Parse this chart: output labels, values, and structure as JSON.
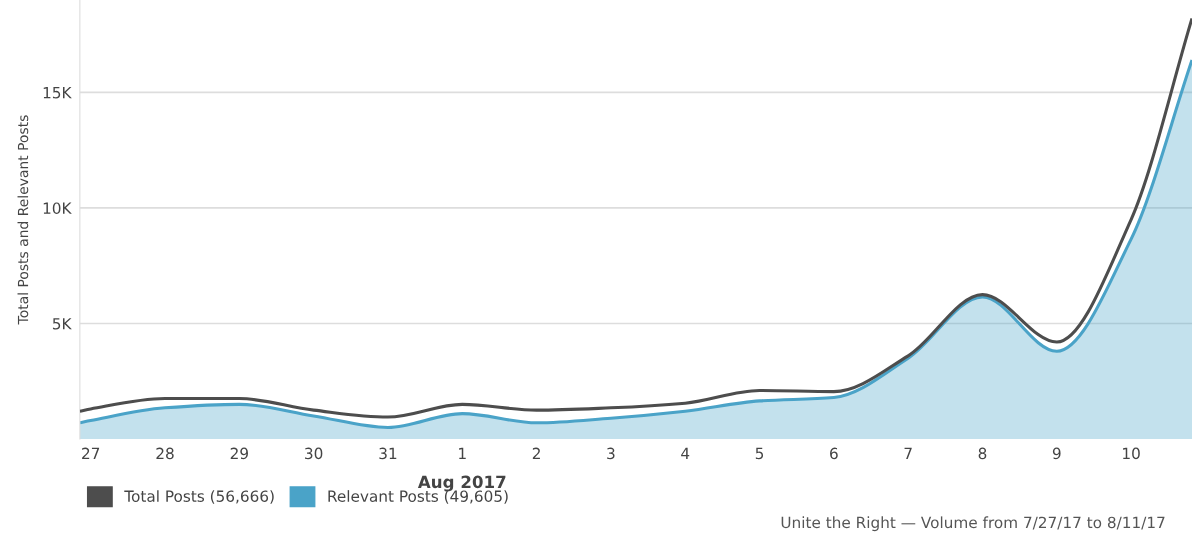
{
  "chart_data": {
    "type": "area",
    "ylabel": "Total Posts and Relevant Posts",
    "x": [
      "2017-07-26T20:30",
      "2017-07-27",
      "2017-07-28",
      "2017-07-29",
      "2017-07-30",
      "2017-07-31",
      "2017-08-01",
      "2017-08-02",
      "2017-08-03",
      "2017-08-04",
      "2017-08-05",
      "2017-08-06",
      "2017-08-07",
      "2017-08-08",
      "2017-08-09",
      "2017-08-10",
      "2017-08-10T19:40"
    ],
    "series": [
      {
        "name": "Total Posts (56,666)",
        "type": "line",
        "color": "#4d4d4d",
        "values": [
          1200,
          1300,
          1750,
          1750,
          1250,
          950,
          1500,
          1250,
          1350,
          1550,
          2100,
          2050,
          3600,
          6250,
          4200,
          9500,
          18200
        ]
      },
      {
        "name": "Relevant Posts (49,605)",
        "color": "#4aa3c8",
        "values": [
          700,
          800,
          1350,
          1500,
          1000,
          500,
          1100,
          700,
          900,
          1200,
          1650,
          1800,
          3500,
          6150,
          3800,
          8650,
          16400
        ]
      }
    ],
    "xlim": [
      "2017-07-26T20:30",
      "2017-08-10T19:40"
    ],
    "xticks": [
      {
        "value": "2017-07-27",
        "label": "27"
      },
      {
        "value": "2017-07-28",
        "label": "28"
      },
      {
        "value": "2017-07-29",
        "label": "29"
      },
      {
        "value": "2017-07-30",
        "label": "30"
      },
      {
        "value": "2017-07-31",
        "label": "31"
      },
      {
        "value": "2017-08-01",
        "label": "1"
      },
      {
        "value": "2017-08-02",
        "label": "2"
      },
      {
        "value": "2017-08-03",
        "label": "3"
      },
      {
        "value": "2017-08-04",
        "label": "4"
      },
      {
        "value": "2017-08-05",
        "label": "5"
      },
      {
        "value": "2017-08-06",
        "label": "6"
      },
      {
        "value": "2017-08-07",
        "label": "7"
      },
      {
        "value": "2017-08-08",
        "label": "8"
      },
      {
        "value": "2017-08-09",
        "label": "9"
      },
      {
        "value": "2017-08-10",
        "label": "10"
      }
    ],
    "ylim": [
      0,
      19000
    ],
    "yticks": [
      {
        "value": 5000,
        "label": "5K"
      },
      {
        "value": 10000,
        "label": "10K"
      },
      {
        "value": 15000,
        "label": "15K"
      }
    ],
    "grid": "y",
    "legend": "bottom left",
    "annotations": [
      {
        "text": "Aug 2017",
        "x": "2017-08-01",
        "y": 0
      },
      "Unite the Right — Volume from 7/27/17 to 8/11/17"
    ]
  }
}
